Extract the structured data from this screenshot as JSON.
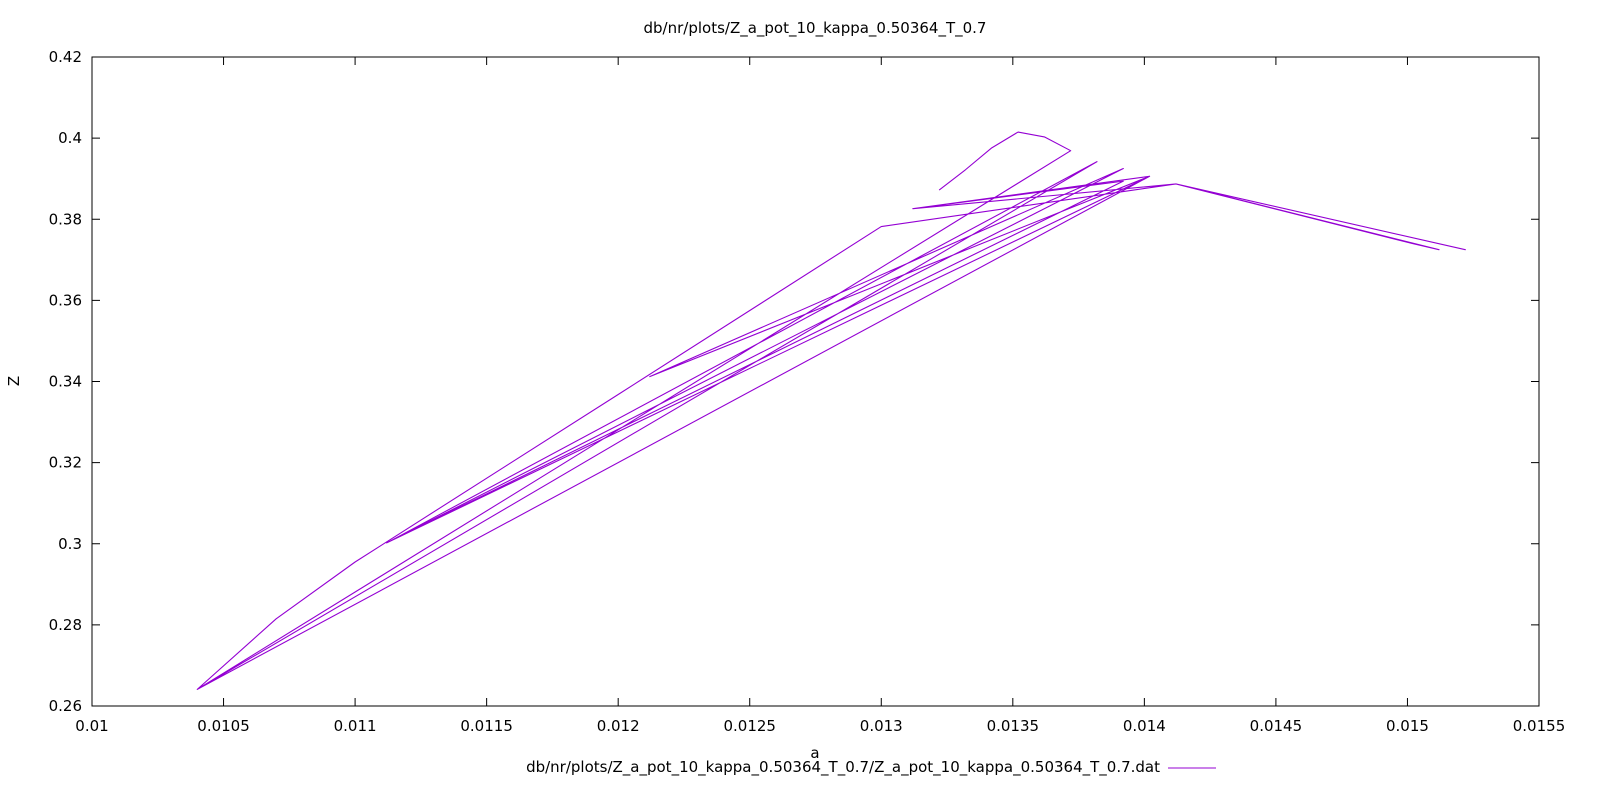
{
  "chart_data": {
    "type": "line",
    "title": "db/nr/plots/Z_a_pot_10_kappa_0.50364_T_0.7",
    "xlabel": "a",
    "ylabel": "Z",
    "xlim": [
      0.01,
      0.0155
    ],
    "ylim": [
      0.26,
      0.42
    ],
    "x_ticks": [
      "0.01",
      "0.0105",
      "0.011",
      "0.0115",
      "0.012",
      "0.0125",
      "0.013",
      "0.0135",
      "0.014",
      "0.0145",
      "0.015",
      "0.0155"
    ],
    "y_ticks": [
      "0.26",
      "0.28",
      "0.3",
      "0.32",
      "0.34",
      "0.36",
      "0.38",
      "0.4",
      "0.42"
    ],
    "grid": false,
    "legend_position": "bottom-center",
    "series": [
      {
        "name": "db/nr/plots/Z_a_pot_10_kappa_0.50364_T_0.7/Z_a_pot_10_kappa_0.50364_T_0.7.dat",
        "color": "#9400d3",
        "points": [
          [
            0.01322,
            0.3872
          ],
          [
            0.01332,
            0.3922
          ],
          [
            0.01342,
            0.3976
          ],
          [
            0.01352,
            0.4015
          ],
          [
            0.01362,
            0.4003
          ],
          [
            0.01372,
            0.3969
          ],
          [
            0.0104,
            0.2641
          ],
          [
            0.0107,
            0.2815
          ],
          [
            0.011,
            0.2955
          ],
          [
            0.012,
            0.3368
          ],
          [
            0.013,
            0.3782
          ],
          [
            0.01412,
            0.3887
          ],
          [
            0.01502,
            0.374
          ],
          [
            0.01512,
            0.3725
          ],
          [
            0.01412,
            0.3887
          ],
          [
            0.01522,
            0.3725
          ],
          [
            0.01412,
            0.3887
          ],
          [
            0.01312,
            0.3826
          ],
          [
            0.01392,
            0.3894
          ],
          [
            0.01112,
            0.3002
          ],
          [
            0.01382,
            0.3942
          ],
          [
            0.0104,
            0.2641
          ],
          [
            0.01402,
            0.3906
          ],
          [
            0.01312,
            0.3826
          ],
          [
            0.01402,
            0.3906
          ],
          [
            0.01112,
            0.3002
          ],
          [
            0.01392,
            0.3925
          ],
          [
            0.01212,
            0.3412
          ],
          [
            0.01402,
            0.3906
          ]
        ]
      }
    ]
  }
}
